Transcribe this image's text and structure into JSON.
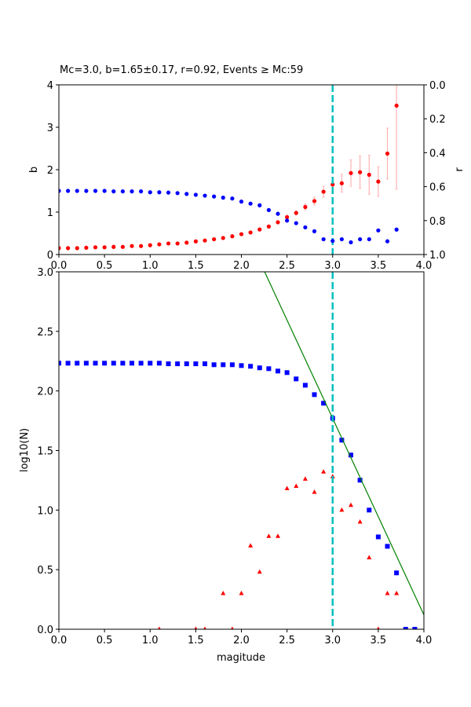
{
  "chart_data": [
    {
      "type": "scatter",
      "title": "Mc=3.0, b=1.65±0.17, r=0.92, Events ≥ Mc:59",
      "xlabel": "",
      "ylabel": "b",
      "ylabel_right": "r",
      "xlim": [
        0,
        4
      ],
      "ylim": [
        0,
        4
      ],
      "ylim_right": [
        1,
        0
      ],
      "xticks": [
        "0.0",
        "0.5",
        "1.0",
        "1.5",
        "2.0",
        "2.5",
        "3.0",
        "3.5",
        "4.0"
      ],
      "yticks": [
        "0",
        "1",
        "2",
        "3",
        "4"
      ],
      "yticks_right": [
        "0.0",
        "0.2",
        "0.4",
        "0.6",
        "0.8",
        "1.0"
      ],
      "mc_line": 3.0,
      "colors": {
        "b": "#ff0000",
        "b_err": "#ffb3b3",
        "r": "#0000ff",
        "mc": "#00bfbf"
      },
      "x": [
        0.0,
        0.1,
        0.2,
        0.3,
        0.4,
        0.5,
        0.6,
        0.7,
        0.8,
        0.9,
        1.0,
        1.1,
        1.2,
        1.3,
        1.4,
        1.5,
        1.6,
        1.7,
        1.8,
        1.9,
        2.0,
        2.1,
        2.2,
        2.3,
        2.4,
        2.5,
        2.6,
        2.7,
        2.8,
        2.9,
        3.0,
        3.1,
        3.2,
        3.3,
        3.4,
        3.5,
        3.6,
        3.7
      ],
      "b": [
        0.15,
        0.15,
        0.15,
        0.16,
        0.17,
        0.17,
        0.18,
        0.18,
        0.2,
        0.2,
        0.22,
        0.24,
        0.26,
        0.26,
        0.28,
        0.31,
        0.33,
        0.36,
        0.39,
        0.43,
        0.48,
        0.52,
        0.59,
        0.66,
        0.76,
        0.88,
        0.98,
        1.12,
        1.26,
        1.48,
        1.65,
        1.68,
        1.92,
        1.94,
        1.88,
        1.72,
        2.38,
        3.51
      ],
      "b_err": [
        0.01,
        0.01,
        0.01,
        0.01,
        0.01,
        0.01,
        0.01,
        0.01,
        0.01,
        0.01,
        0.01,
        0.01,
        0.01,
        0.01,
        0.01,
        0.01,
        0.01,
        0.01,
        0.01,
        0.01,
        0.02,
        0.02,
        0.03,
        0.03,
        0.04,
        0.05,
        0.05,
        0.07,
        0.09,
        0.13,
        0.17,
        0.21,
        0.31,
        0.38,
        0.46,
        0.35,
        0.6,
        1.97
      ],
      "r": [
        0.625,
        0.625,
        0.625,
        0.625,
        0.625,
        0.625,
        0.628,
        0.628,
        0.628,
        0.628,
        0.633,
        0.633,
        0.635,
        0.638,
        0.643,
        0.648,
        0.653,
        0.658,
        0.665,
        0.67,
        0.688,
        0.7,
        0.71,
        0.738,
        0.76,
        0.8,
        0.815,
        0.84,
        0.863,
        0.91,
        0.92,
        0.91,
        0.928,
        0.91,
        0.91,
        0.858,
        0.922,
        0.853
      ]
    },
    {
      "type": "scatter",
      "title": "",
      "xlabel": "magitude",
      "ylabel": "log10(N)",
      "xlim": [
        0,
        4
      ],
      "ylim": [
        0,
        3
      ],
      "xticks": [
        "0.0",
        "0.5",
        "1.0",
        "1.5",
        "2.0",
        "2.5",
        "3.0",
        "3.5",
        "4.0"
      ],
      "yticks": [
        "0.0",
        "0.5",
        "1.0",
        "1.5",
        "2.0",
        "2.5",
        "3.0"
      ],
      "mc_line": 3.0,
      "fit_line": {
        "a": 6.72,
        "b": 1.65
      },
      "colors": {
        "cumulative": "#0000ff",
        "noncumulative": "#ff0000",
        "fit": "#008000",
        "mc": "#00bfbf"
      },
      "cumulative": {
        "x": [
          0.0,
          0.1,
          0.2,
          0.3,
          0.4,
          0.5,
          0.6,
          0.7,
          0.8,
          0.9,
          1.0,
          1.1,
          1.2,
          1.3,
          1.4,
          1.5,
          1.6,
          1.7,
          1.8,
          1.9,
          2.0,
          2.1,
          2.2,
          2.3,
          2.4,
          2.5,
          2.6,
          2.7,
          2.8,
          2.9,
          3.0,
          3.1,
          3.2,
          3.3,
          3.4,
          3.5,
          3.6,
          3.7,
          3.8,
          3.9
        ],
        "y": [
          2.233,
          2.233,
          2.233,
          2.233,
          2.233,
          2.233,
          2.233,
          2.233,
          2.233,
          2.233,
          2.233,
          2.233,
          2.228,
          2.228,
          2.228,
          2.228,
          2.228,
          2.22,
          2.22,
          2.22,
          2.213,
          2.207,
          2.194,
          2.187,
          2.167,
          2.154,
          2.101,
          2.048,
          1.969,
          1.897,
          1.771,
          1.587,
          1.462,
          1.251,
          1.0,
          0.775,
          0.696,
          0.473,
          0,
          0
        ]
      },
      "noncumulative": {
        "x": [
          1.1,
          1.5,
          1.6,
          1.8,
          1.9,
          2.0,
          2.1,
          2.2,
          2.3,
          2.4,
          2.5,
          2.6,
          2.7,
          2.8,
          2.9,
          3.0,
          3.1,
          3.2,
          3.3,
          3.4,
          3.5,
          3.6,
          3.7
        ],
        "y": [
          0,
          0,
          0,
          0.3,
          0,
          0.3,
          0.7,
          0.48,
          0.78,
          0.78,
          1.18,
          1.2,
          1.26,
          1.15,
          1.32,
          1.28,
          1.0,
          1.04,
          0.9,
          0.6,
          0,
          0.3,
          0.3
        ]
      }
    }
  ]
}
